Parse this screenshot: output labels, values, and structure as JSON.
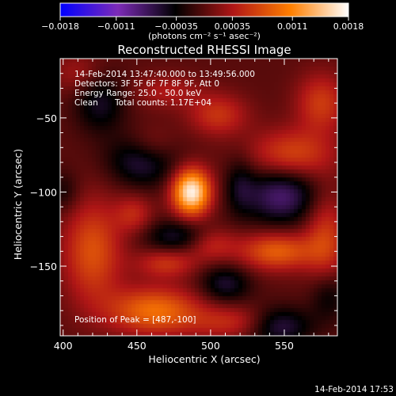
{
  "chart_data": {
    "type": "heatmap",
    "title": "Reconstructed RHESSI Image",
    "xlabel": "Heliocentric X (arcsec)",
    "ylabel": "Heliocentric Y (arcsec)",
    "xlim": [
      398,
      586
    ],
    "ylim": [
      -197,
      -10
    ],
    "xticks": [
      400,
      450,
      500,
      550
    ],
    "yticks": [
      -50,
      -100,
      -150
    ],
    "colorbar": {
      "range": [
        -0.0018,
        0.0018
      ],
      "ticks": [
        {
          "value": -0.0018,
          "label": "−0.0018"
        },
        {
          "value": -0.0011,
          "label": "−0.0011"
        },
        {
          "value": -0.00035,
          "label": "−0.00035"
        },
        {
          "value": 0.00035,
          "label": "0.00035"
        },
        {
          "value": 0.0011,
          "label": "0.0011"
        },
        {
          "value": 0.0018,
          "label": "0.0018"
        }
      ],
      "unit_label": "(photons cm⁻² s⁻¹ asec⁻²)",
      "colors": [
        "#0000ff",
        "#7d2bb8",
        "#000000",
        "#b01616",
        "#ff7f00",
        "#ffffff"
      ]
    },
    "annotations": [
      "14-Feb-2014 13:47:40.000 to 13:49:56.000",
      "Detectors: 3F 5F 6F 7F 8F 9F, Att 0",
      "Energy Range: 25.0 - 50.0 keV",
      "Clean",
      "Total counts: 1.17E+04"
    ],
    "peak_label": "Position of Peak = [487,-100]",
    "peak": [
      487,
      -100
    ],
    "features": [
      {
        "x": 487,
        "y": -100,
        "amp": 1.75,
        "sx": 9,
        "sy": 11
      },
      {
        "x": 462,
        "y": -180,
        "amp": 0.95,
        "sx": 22,
        "sy": 11
      },
      {
        "x": 520,
        "y": -188,
        "amp": 0.55,
        "sx": 22,
        "sy": 8
      },
      {
        "x": 420,
        "y": -140,
        "amp": 0.75,
        "sx": 14,
        "sy": 24
      },
      {
        "x": 470,
        "y": -148,
        "amp": 0.55,
        "sx": 14,
        "sy": 7
      },
      {
        "x": 500,
        "y": -135,
        "amp": 0.5,
        "sx": 12,
        "sy": 8
      },
      {
        "x": 545,
        "y": -140,
        "amp": 0.85,
        "sx": 18,
        "sy": 9
      },
      {
        "x": 578,
        "y": -130,
        "amp": 0.6,
        "sx": 10,
        "sy": 22
      },
      {
        "x": 555,
        "y": -75,
        "amp": 0.7,
        "sx": 20,
        "sy": 12
      },
      {
        "x": 575,
        "y": -40,
        "amp": 0.6,
        "sx": 12,
        "sy": 14
      },
      {
        "x": 505,
        "y": -48,
        "amp": 0.55,
        "sx": 14,
        "sy": 10
      },
      {
        "x": 460,
        "y": -70,
        "amp": 0.45,
        "sx": 12,
        "sy": 10
      },
      {
        "x": 448,
        "y": -115,
        "amp": 0.45,
        "sx": 9,
        "sy": 9
      },
      {
        "x": 470,
        "y": -32,
        "amp": 0.35,
        "sx": 16,
        "sy": 8
      },
      {
        "x": 410,
        "y": -20,
        "amp": 0.3,
        "sx": 12,
        "sy": 10
      },
      {
        "x": 455,
        "y": -78,
        "amp": -0.75,
        "sx": 16,
        "sy": 12
      },
      {
        "x": 548,
        "y": -102,
        "amp": -0.8,
        "sx": 18,
        "sy": 14
      },
      {
        "x": 545,
        "y": -190,
        "amp": -0.8,
        "sx": 16,
        "sy": 9
      },
      {
        "x": 478,
        "y": -130,
        "amp": -0.55,
        "sx": 16,
        "sy": 8
      },
      {
        "x": 425,
        "y": -40,
        "amp": -0.5,
        "sx": 12,
        "sy": 14
      },
      {
        "x": 510,
        "y": -162,
        "amp": -0.55,
        "sx": 12,
        "sy": 9
      },
      {
        "x": 520,
        "y": -95,
        "amp": -0.35,
        "sx": 7,
        "sy": 14
      },
      {
        "x": 580,
        "y": -170,
        "amp": -0.4,
        "sx": 9,
        "sy": 12
      },
      {
        "x": 400,
        "y": -100,
        "amp": -0.3,
        "sx": 8,
        "sy": 10
      }
    ],
    "grid": false,
    "legend": "none"
  },
  "footer": {
    "timestamp": "14-Feb-2014 17:53"
  }
}
